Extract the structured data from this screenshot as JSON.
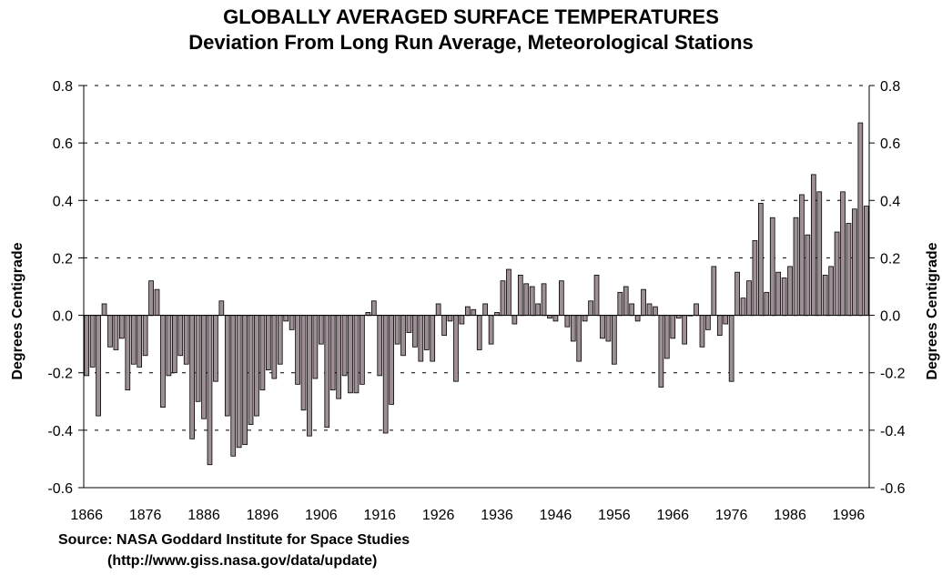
{
  "chart_data": {
    "type": "bar",
    "title": "GLOBALLY AVERAGED SURFACE TEMPERATURES",
    "subtitle": "Deviation From Long Run Average, Meteorological Stations",
    "ylabel": "Degrees Centigrade",
    "ylabel_right": "Degrees Centigrade",
    "xlabel": "",
    "ylim": [
      -0.6,
      0.8
    ],
    "yticks": [
      "0.8",
      "0.6",
      "0.4",
      "0.2",
      "0.0",
      "-0.2",
      "-0.4",
      "-0.6"
    ],
    "ytick_values": [
      0.8,
      0.6,
      0.4,
      0.2,
      0.0,
      -0.2,
      -0.4,
      -0.6
    ],
    "xticks": [
      "1866",
      "1876",
      "1886",
      "1896",
      "1906",
      "1916",
      "1926",
      "1936",
      "1946",
      "1956",
      "1966",
      "1976",
      "1986",
      "1996"
    ],
    "start_year": 1866,
    "grid": "horizontal dashed",
    "bar_color": "#9e8e96",
    "bar_edge_color": "#000000",
    "values": [
      -0.21,
      -0.18,
      -0.35,
      0.04,
      -0.11,
      -0.12,
      -0.08,
      -0.26,
      -0.17,
      -0.18,
      -0.14,
      0.12,
      0.09,
      -0.32,
      -0.21,
      -0.2,
      -0.14,
      -0.17,
      -0.43,
      -0.3,
      -0.36,
      -0.52,
      -0.23,
      0.05,
      -0.35,
      -0.49,
      -0.46,
      -0.45,
      -0.38,
      -0.35,
      -0.26,
      -0.19,
      -0.22,
      -0.17,
      -0.02,
      -0.05,
      -0.24,
      -0.33,
      -0.42,
      -0.22,
      -0.1,
      -0.39,
      -0.26,
      -0.29,
      -0.21,
      -0.27,
      -0.27,
      -0.24,
      0.01,
      0.05,
      -0.21,
      -0.41,
      -0.31,
      -0.1,
      -0.14,
      -0.06,
      -0.11,
      -0.16,
      -0.12,
      -0.16,
      0.04,
      -0.07,
      -0.02,
      -0.23,
      -0.03,
      0.03,
      0.02,
      -0.12,
      0.04,
      -0.1,
      0.01,
      0.12,
      0.16,
      -0.03,
      0.14,
      0.11,
      0.1,
      0.04,
      0.11,
      -0.01,
      -0.02,
      0.12,
      -0.04,
      -0.09,
      -0.16,
      -0.02,
      0.05,
      0.14,
      -0.08,
      -0.09,
      -0.17,
      0.08,
      0.1,
      0.04,
      -0.02,
      0.09,
      0.04,
      0.03,
      -0.25,
      -0.15,
      -0.08,
      -0.01,
      -0.1,
      0.0,
      0.04,
      -0.11,
      -0.05,
      0.17,
      -0.07,
      -0.03,
      -0.23,
      0.15,
      0.06,
      0.12,
      0.26,
      0.39,
      0.08,
      0.34,
      0.15,
      0.13,
      0.17,
      0.34,
      0.42,
      0.28,
      0.49,
      0.43,
      0.14,
      0.17,
      0.29,
      0.43,
      0.32,
      0.37,
      0.67,
      0.38
    ]
  },
  "source": {
    "line1": "Source: NASA Goddard Institute for Space Studies",
    "line2": "(http://www.giss.nasa.gov/data/update)"
  }
}
